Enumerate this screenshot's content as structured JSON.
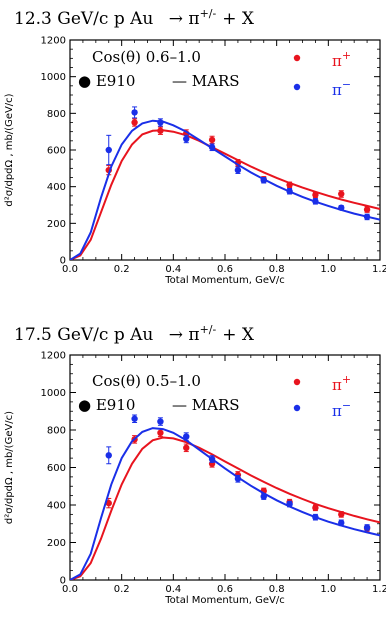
{
  "chart_data": [
    {
      "type": "scatter",
      "title_parts": {
        "text": "12.3 GeV/c p Au",
        "arrow": "→",
        "pi": "π",
        "charge": "+/-",
        "tail": "+ X"
      },
      "xlabel": "Total Momentum, GeV/c",
      "ylabel": "d²σ/dpdΩ , mb/(GeV/c)",
      "xlim": [
        0,
        1.2
      ],
      "ylim": [
        0,
        1200
      ],
      "xticks": [
        "0.0",
        "0.2",
        "0.4",
        "0.6",
        "0.8",
        "1.0",
        "1.2"
      ],
      "yticks": [
        "0",
        "200",
        "400",
        "600",
        "800",
        "1000",
        "1200"
      ],
      "grid": false,
      "annotation": {
        "cos": "Cos(θ)",
        "range": "0.6–1.0"
      },
      "legend_data": "● E910",
      "legend_model": "—  MARS",
      "series": [
        {
          "name": "π+",
          "color": "#e8141e",
          "x": [
            0.15,
            0.25,
            0.35,
            0.45,
            0.55,
            0.65,
            0.75,
            0.85,
            0.95,
            1.05,
            1.15
          ],
          "y": [
            490,
            750,
            705,
            690,
            655,
            530,
            440,
            410,
            355,
            360,
            275
          ],
          "err": [
            25,
            20,
            20,
            20,
            20,
            18,
            15,
            15,
            15,
            18,
            15
          ],
          "curve": [
            [
              0.0,
              0
            ],
            [
              0.04,
              25
            ],
            [
              0.08,
              110
            ],
            [
              0.12,
              260
            ],
            [
              0.16,
              410
            ],
            [
              0.2,
              540
            ],
            [
              0.24,
              630
            ],
            [
              0.28,
              685
            ],
            [
              0.32,
              705
            ],
            [
              0.36,
              708
            ],
            [
              0.4,
              700
            ],
            [
              0.45,
              680
            ],
            [
              0.5,
              650
            ],
            [
              0.55,
              615
            ],
            [
              0.6,
              580
            ],
            [
              0.65,
              545
            ],
            [
              0.7,
              510
            ],
            [
              0.75,
              478
            ],
            [
              0.8,
              448
            ],
            [
              0.85,
              420
            ],
            [
              0.9,
              395
            ],
            [
              0.95,
              372
            ],
            [
              1.0,
              350
            ],
            [
              1.05,
              330
            ],
            [
              1.1,
              312
            ],
            [
              1.15,
              295
            ],
            [
              1.2,
              278
            ]
          ]
        },
        {
          "name": "π−",
          "color": "#1a2fe8",
          "x": [
            0.15,
            0.25,
            0.35,
            0.45,
            0.55,
            0.65,
            0.75,
            0.85,
            0.95,
            1.05,
            1.15
          ],
          "y": [
            600,
            805,
            750,
            660,
            615,
            490,
            435,
            375,
            320,
            285,
            235
          ],
          "err": [
            80,
            30,
            20,
            20,
            18,
            18,
            15,
            15,
            15,
            12,
            15
          ],
          "curve": [
            [
              0.0,
              0
            ],
            [
              0.04,
              35
            ],
            [
              0.08,
              150
            ],
            [
              0.12,
              340
            ],
            [
              0.16,
              510
            ],
            [
              0.2,
              630
            ],
            [
              0.24,
              705
            ],
            [
              0.28,
              745
            ],
            [
              0.32,
              760
            ],
            [
              0.36,
              755
            ],
            [
              0.4,
              735
            ],
            [
              0.45,
              700
            ],
            [
              0.5,
              655
            ],
            [
              0.55,
              610
            ],
            [
              0.6,
              565
            ],
            [
              0.65,
              520
            ],
            [
              0.7,
              478
            ],
            [
              0.75,
              440
            ],
            [
              0.8,
              405
            ],
            [
              0.85,
              373
            ],
            [
              0.9,
              344
            ],
            [
              0.95,
              318
            ],
            [
              1.0,
              295
            ],
            [
              1.05,
              273
            ],
            [
              1.1,
              253
            ],
            [
              1.15,
              236
            ],
            [
              1.2,
              220
            ]
          ]
        }
      ]
    },
    {
      "type": "scatter",
      "title_parts": {
        "text": "17.5 GeV/c p Au",
        "arrow": "→",
        "pi": "π",
        "charge": "+/-",
        "tail": "+ X"
      },
      "xlabel": "Total Momentum, GeV/c",
      "ylabel": "d²σ/dpdΩ , mb/(GeV/c)",
      "xlim": [
        0,
        1.2
      ],
      "ylim": [
        0,
        1200
      ],
      "xticks": [
        "0.0",
        "0.2",
        "0.4",
        "0.6",
        "0.8",
        "1.0",
        "1.2"
      ],
      "yticks": [
        "0",
        "200",
        "400",
        "600",
        "800",
        "1000",
        "1200"
      ],
      "grid": false,
      "annotation": {
        "cos": "Cos(θ)",
        "range": "0.5–1.0"
      },
      "legend_data": "● E910",
      "legend_model": "—  MARS",
      "series": [
        {
          "name": "π+",
          "color": "#e8141e",
          "x": [
            0.15,
            0.25,
            0.35,
            0.45,
            0.55,
            0.65,
            0.75,
            0.85,
            0.95,
            1.05,
            1.15
          ],
          "y": [
            410,
            750,
            785,
            705,
            620,
            560,
            475,
            415,
            385,
            350,
            275
          ],
          "err": [
            25,
            20,
            20,
            20,
            18,
            18,
            15,
            15,
            15,
            15,
            15
          ],
          "curve": [
            [
              0.0,
              0
            ],
            [
              0.04,
              20
            ],
            [
              0.08,
              90
            ],
            [
              0.12,
              220
            ],
            [
              0.16,
              370
            ],
            [
              0.2,
              510
            ],
            [
              0.24,
              620
            ],
            [
              0.28,
              700
            ],
            [
              0.32,
              745
            ],
            [
              0.36,
              760
            ],
            [
              0.4,
              755
            ],
            [
              0.45,
              735
            ],
            [
              0.5,
              705
            ],
            [
              0.55,
              670
            ],
            [
              0.6,
              632
            ],
            [
              0.65,
              595
            ],
            [
              0.7,
              558
            ],
            [
              0.75,
              523
            ],
            [
              0.8,
              490
            ],
            [
              0.85,
              460
            ],
            [
              0.9,
              432
            ],
            [
              0.95,
              406
            ],
            [
              1.0,
              383
            ],
            [
              1.05,
              362
            ],
            [
              1.1,
              342
            ],
            [
              1.15,
              324
            ],
            [
              1.2,
              307
            ]
          ]
        },
        {
          "name": "π−",
          "color": "#1a2fe8",
          "x": [
            0.15,
            0.25,
            0.35,
            0.45,
            0.55,
            0.65,
            0.75,
            0.85,
            0.95,
            1.05,
            1.15
          ],
          "y": [
            665,
            860,
            845,
            765,
            645,
            540,
            445,
            405,
            335,
            305,
            280
          ],
          "err": [
            45,
            20,
            20,
            20,
            18,
            18,
            15,
            15,
            15,
            15,
            15
          ],
          "curve": [
            [
              0.0,
              0
            ],
            [
              0.04,
              30
            ],
            [
              0.08,
              140
            ],
            [
              0.12,
              330
            ],
            [
              0.16,
              510
            ],
            [
              0.2,
              650
            ],
            [
              0.24,
              740
            ],
            [
              0.28,
              790
            ],
            [
              0.32,
              810
            ],
            [
              0.36,
              805
            ],
            [
              0.4,
              785
            ],
            [
              0.45,
              745
            ],
            [
              0.5,
              695
            ],
            [
              0.55,
              645
            ],
            [
              0.6,
              595
            ],
            [
              0.65,
              548
            ],
            [
              0.7,
              503
            ],
            [
              0.75,
              462
            ],
            [
              0.8,
              425
            ],
            [
              0.85,
              392
            ],
            [
              0.9,
              362
            ],
            [
              0.95,
              335
            ],
            [
              1.0,
              311
            ],
            [
              1.05,
              290
            ],
            [
              1.1,
              271
            ],
            [
              1.15,
              254
            ],
            [
              1.2,
              238
            ]
          ]
        }
      ]
    }
  ]
}
